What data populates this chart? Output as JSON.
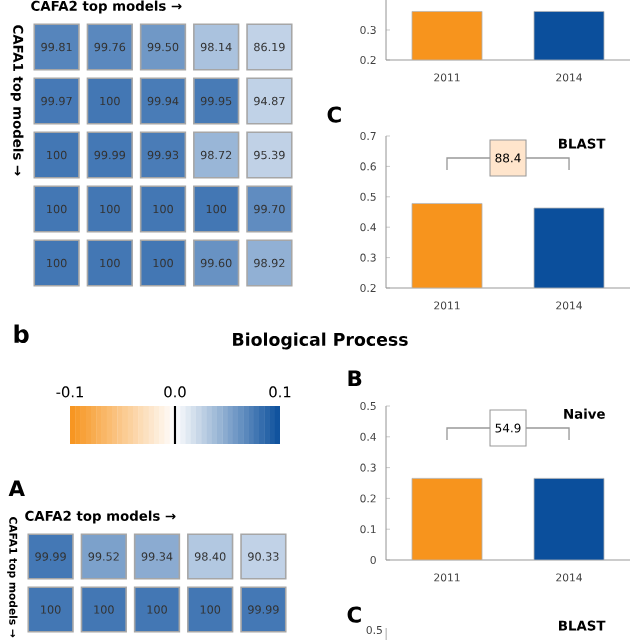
{
  "chart_data": [
    {
      "type": "heatmap",
      "xlabel": "CAFA2 top models →",
      "ylabel": "CAFA1 top models →",
      "categories": [
        null,
        null,
        null,
        null,
        null
      ],
      "y_categories": [
        null,
        null,
        null,
        null,
        null
      ],
      "cells": [
        [
          99.81,
          99.76,
          99.5,
          98.14,
          86.19
        ],
        [
          99.97,
          100,
          99.94,
          99.95,
          94.87
        ],
        [
          100,
          99.99,
          99.93,
          98.72,
          95.39
        ],
        [
          100,
          100,
          100,
          100,
          99.7
        ],
        [
          100,
          100,
          100,
          99.6,
          98.92
        ]
      ],
      "cell_labels": [
        [
          "99.81",
          "99.76",
          "99.50",
          "98.14",
          "86.19"
        ],
        [
          "99.97",
          "100",
          "99.94",
          "99.95",
          "94.87"
        ],
        [
          "100",
          "99.99",
          "99.93",
          "98.72",
          "95.39"
        ],
        [
          "100",
          "100",
          "100",
          "100",
          "99.70"
        ],
        [
          "100",
          "100",
          "100",
          "99.60",
          "98.92"
        ]
      ]
    },
    {
      "type": "bar",
      "categories": [
        "2011",
        "2014"
      ],
      "values": [
        0.362,
        0.362
      ],
      "colors": [
        "#f7941d",
        "#0b4f9c"
      ],
      "ylim": [
        0.2,
        0.4
      ],
      "yticks": [
        0.2,
        0.3
      ]
    },
    {
      "type": "bar",
      "title": "C",
      "categories": [
        "2011",
        "2014"
      ],
      "values": [
        0.478,
        0.463
      ],
      "colors": [
        "#f7941d",
        "#0b4f9c"
      ],
      "ylim": [
        0.2,
        0.7
      ],
      "yticks": [
        0.2,
        0.3,
        0.4,
        0.5,
        0.6,
        0.7
      ],
      "annotations": [
        "BLAST",
        "88.4"
      ]
    },
    {
      "type": "other",
      "title": "Biological Process",
      "annotations": [
        "b",
        "-0.1",
        "0.0",
        "0.1"
      ],
      "colors": [
        "#f7941d",
        "#ffffff",
        "#0b4f9c"
      ]
    },
    {
      "type": "heatmap",
      "title": "A",
      "xlabel": "CAFA2 top models →",
      "ylabel": "CAFA1 top models →",
      "categories": [
        null,
        null,
        null,
        null,
        null
      ],
      "y_categories": [
        null,
        null
      ],
      "cells": [
        [
          99.99,
          99.52,
          99.34,
          98.4,
          90.33
        ],
        [
          100,
          100,
          100,
          100,
          99.99
        ]
      ],
      "cell_labels": [
        [
          "99.99",
          "99.52",
          "99.34",
          "98.40",
          "90.33"
        ],
        [
          "100",
          "100",
          "100",
          "100",
          "99.99"
        ]
      ]
    },
    {
      "type": "bar",
      "title": "B",
      "categories": [
        "2011",
        "2014"
      ],
      "values": [
        0.265,
        0.265
      ],
      "colors": [
        "#f7941d",
        "#0b4f9c"
      ],
      "ylim": [
        0,
        0.5
      ],
      "yticks": [
        0,
        0.1,
        0.2,
        0.3,
        0.4,
        0.5
      ],
      "annotations": [
        "Naive",
        "54.9"
      ]
    },
    {
      "type": "other",
      "title": "C",
      "annotations": [
        "BLAST",
        "0.5"
      ]
    }
  ]
}
